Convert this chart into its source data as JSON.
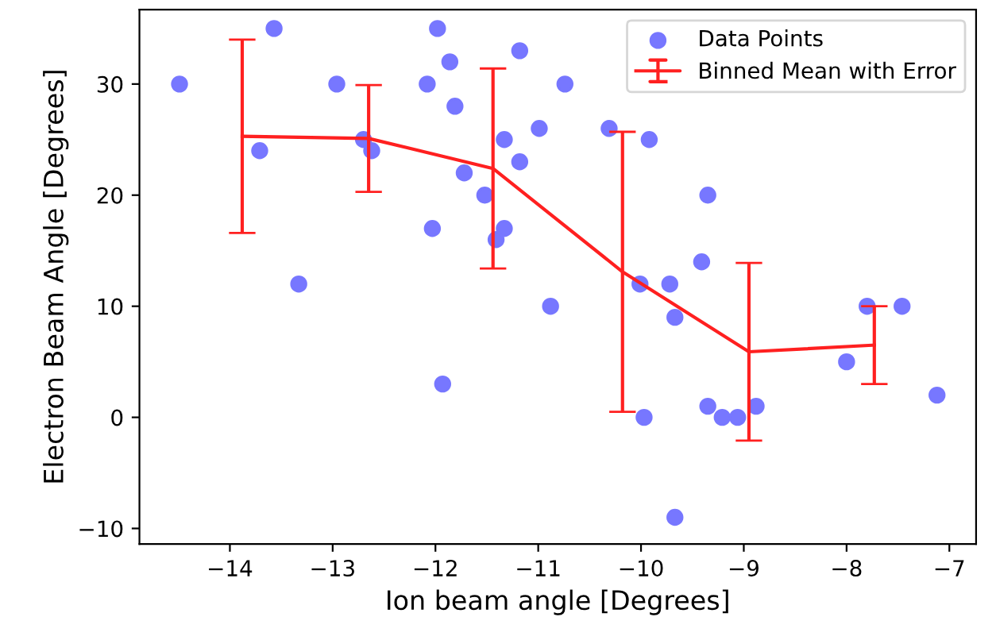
{
  "chart_data": {
    "type": "scatter",
    "xlabel": "Ion beam angle [Degrees]",
    "ylabel": "Electron Beam Angle [Degrees]",
    "xlim": [
      -14.88,
      -6.74
    ],
    "ylim": [
      -11.4,
      36.7
    ],
    "xticks": [
      {
        "value": -14,
        "label": "−14"
      },
      {
        "value": -13,
        "label": "−13"
      },
      {
        "value": -12,
        "label": "−12"
      },
      {
        "value": -11,
        "label": "−11"
      },
      {
        "value": -10,
        "label": "−10"
      },
      {
        "value": -9,
        "label": "−9"
      },
      {
        "value": -8,
        "label": "−8"
      },
      {
        "value": -7,
        "label": "−7"
      }
    ],
    "yticks": [
      {
        "value": -10,
        "label": "−10"
      },
      0,
      10,
      20,
      30
    ],
    "grid": false,
    "legend": "top right",
    "series": [
      {
        "name": "Data Points",
        "marker": "circle",
        "color": "#7777ff",
        "x": [
          -14.49,
          -13.71,
          -13.57,
          -13.33,
          -12.96,
          -12.7,
          -12.62,
          -12.08,
          -12.03,
          -11.98,
          -11.93,
          -11.86,
          -11.81,
          -11.72,
          -11.52,
          -11.41,
          -11.33,
          -11.33,
          -11.18,
          -11.18,
          -10.99,
          -10.88,
          -10.74,
          -10.31,
          -10.01,
          -9.97,
          -9.92,
          -9.72,
          -9.67,
          -9.67,
          -9.41,
          -9.35,
          -9.35,
          -9.21,
          -9.06,
          -8.88,
          -8.0,
          -7.8,
          -7.46,
          -7.12
        ],
        "values": [
          30,
          24,
          35,
          12,
          30,
          25,
          24,
          30,
          17,
          35,
          3,
          32,
          28,
          22,
          20,
          16,
          25,
          17,
          33,
          23,
          26,
          10,
          30,
          26,
          12,
          0,
          25,
          12,
          9,
          -9,
          14,
          20,
          1,
          0,
          0,
          1,
          5,
          10,
          10,
          2
        ]
      },
      {
        "name": "Binned Mean with Error",
        "type": "line",
        "marker": "none",
        "line_style": "solid",
        "color": "#ff2020",
        "x": [
          -13.88,
          -12.65,
          -11.44,
          -10.18,
          -8.95,
          -7.73
        ],
        "values": [
          25.3,
          25.1,
          22.4,
          13.1,
          5.9,
          6.5
        ],
        "errors": [
          8.7,
          4.8,
          9.0,
          12.6,
          8.0,
          3.5
        ]
      }
    ]
  }
}
